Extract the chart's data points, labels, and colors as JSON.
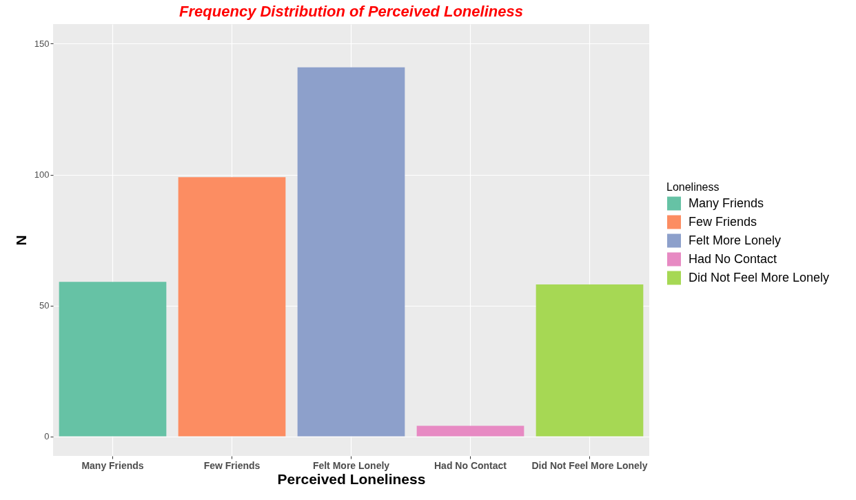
{
  "chart_data": {
    "type": "bar",
    "title": "Frequency Distribution of Perceived Loneliness",
    "xlabel": "Perceived Loneliness",
    "ylabel": "N",
    "legend_title": "Loneliness",
    "categories": [
      "Many Friends",
      "Few Friends",
      "Felt More Lonely",
      "Had No Contact",
      "Did Not Feel More Lonely"
    ],
    "series": [
      {
        "name": "Many Friends",
        "color": "#66c2a5",
        "values": [
          59,
          null,
          null,
          null,
          null
        ]
      },
      {
        "name": "Few Friends",
        "color": "#fc8d62",
        "values": [
          null,
          99,
          null,
          null,
          null
        ]
      },
      {
        "name": "Felt More Lonely",
        "color": "#8da0cb",
        "values": [
          null,
          null,
          141,
          null,
          null
        ]
      },
      {
        "name": "Had No Contact",
        "color": "#e78ac3",
        "values": [
          null,
          null,
          null,
          4,
          null
        ]
      },
      {
        "name": "Did Not Feel More Lonely",
        "color": "#a6d854",
        "values": [
          null,
          null,
          null,
          null,
          58
        ]
      }
    ],
    "ylim": [
      -7.5,
      157.5
    ],
    "yticks": [
      0,
      50,
      100,
      150
    ],
    "grid": true,
    "legend": "right"
  }
}
